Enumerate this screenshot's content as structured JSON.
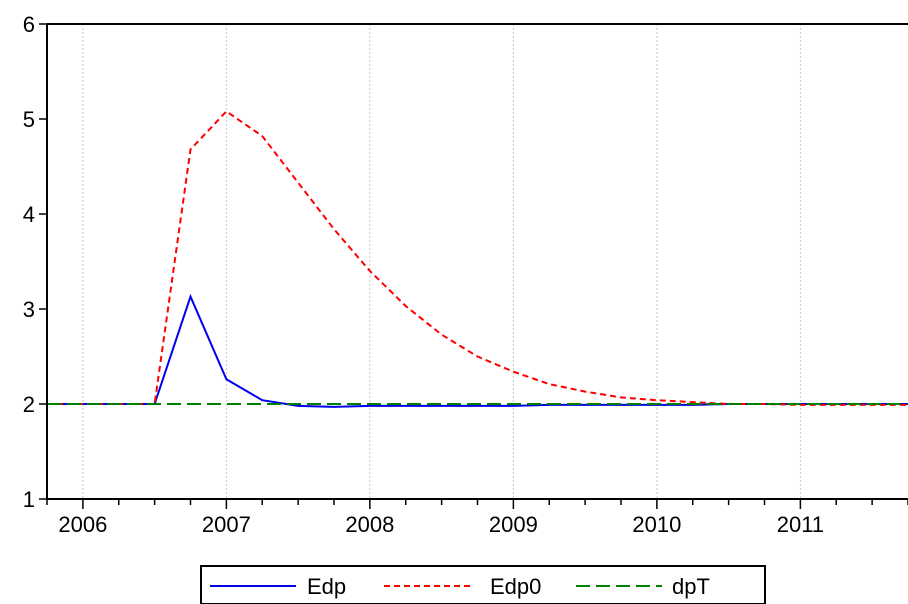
{
  "chart_data": {
    "type": "line",
    "title": "",
    "xlabel": "",
    "ylabel": "",
    "ylim": [
      1,
      6
    ],
    "xlim": [
      2005.75,
      2011.75
    ],
    "yticks": [
      "1",
      "2",
      "3",
      "4",
      "5",
      "6"
    ],
    "xticks": [
      "2006",
      "2007",
      "2008",
      "2009",
      "2010",
      "2011"
    ],
    "grid": "vertical-dotted",
    "legend_position": "bottom",
    "series": [
      {
        "name": "Edp",
        "color": "#0000ee",
        "dash": "solid",
        "x": [
          2005.75,
          2006.0,
          2006.25,
          2006.5,
          2006.75,
          2007.0,
          2007.25,
          2007.5,
          2007.75,
          2008.0,
          2008.25,
          2008.5,
          2008.75,
          2009.0,
          2009.25,
          2009.5,
          2009.75,
          2010.0,
          2010.25,
          2010.5,
          2010.75,
          2011.0,
          2011.25,
          2011.5,
          2011.75
        ],
        "y": [
          2.0,
          2.0,
          2.0,
          2.0,
          3.13,
          2.26,
          2.04,
          1.98,
          1.97,
          1.98,
          1.98,
          1.98,
          1.98,
          1.98,
          1.99,
          1.99,
          1.99,
          1.99,
          1.99,
          2.0,
          2.0,
          2.0,
          2.0,
          2.0,
          2.0
        ]
      },
      {
        "name": "Edp0",
        "color": "#ff0000",
        "dash": "short-dash",
        "x": [
          2005.75,
          2006.0,
          2006.25,
          2006.5,
          2006.75,
          2007.0,
          2007.25,
          2007.5,
          2007.75,
          2008.0,
          2008.25,
          2008.5,
          2008.75,
          2009.0,
          2009.25,
          2009.5,
          2009.75,
          2010.0,
          2010.25,
          2010.5,
          2010.75,
          2011.0,
          2011.25,
          2011.5,
          2011.75
        ],
        "y": [
          2.0,
          2.0,
          2.0,
          2.0,
          4.68,
          5.08,
          4.82,
          4.33,
          3.84,
          3.4,
          3.03,
          2.73,
          2.5,
          2.34,
          2.21,
          2.13,
          2.07,
          2.04,
          2.02,
          2.0,
          2.0,
          1.99,
          1.99,
          1.99,
          1.99
        ]
      },
      {
        "name": "dpT",
        "color": "#008000",
        "dash": "long-dash",
        "x": [
          2005.75,
          2011.75
        ],
        "y": [
          2.0,
          2.0
        ]
      }
    ]
  }
}
